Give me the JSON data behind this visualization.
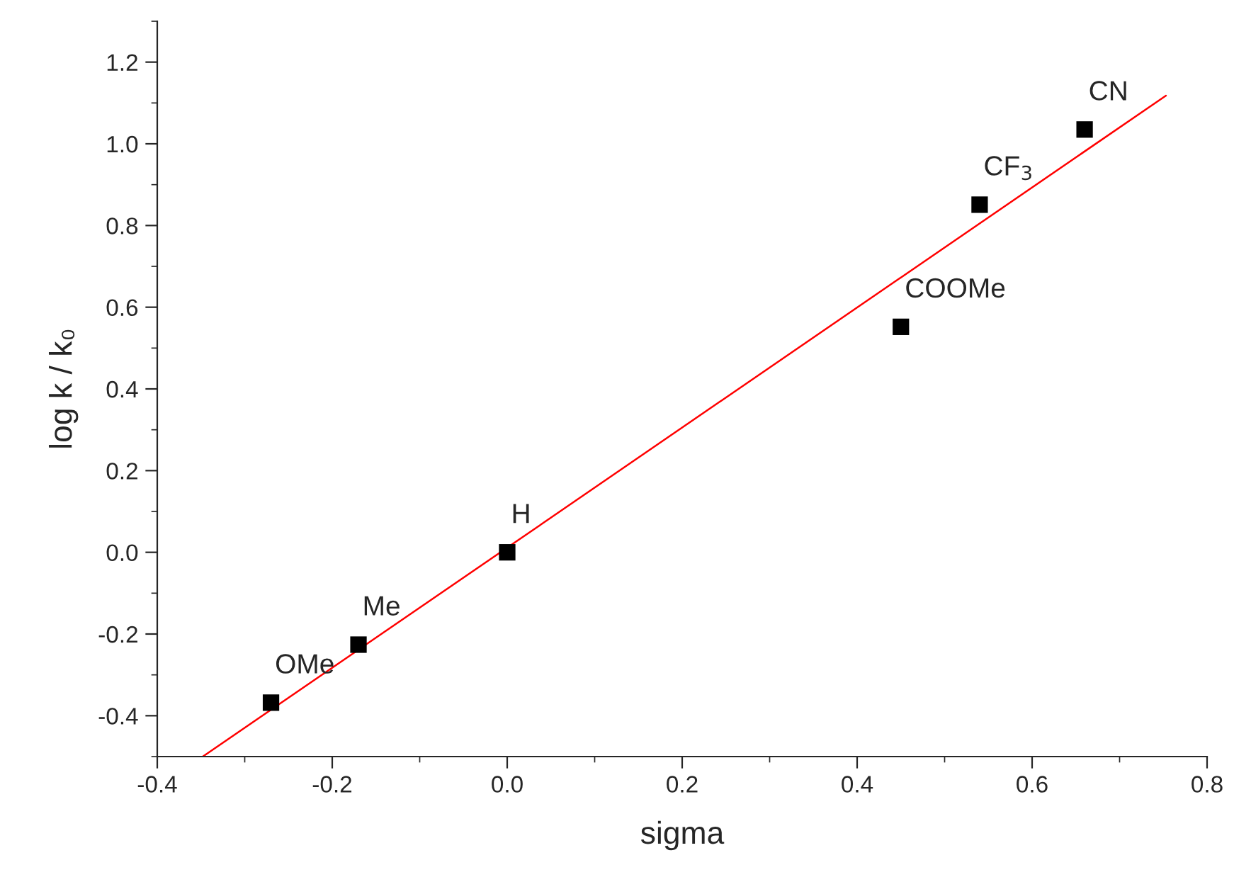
{
  "chart_data": {
    "type": "scatter",
    "xlabel": "sigma",
    "ylabel": "log k / k₀",
    "xlim": [
      -0.4,
      0.8
    ],
    "ylim": [
      -0.5,
      1.3
    ],
    "xticks": [
      {
        "value": -0.4,
        "label": "-0.4"
      },
      {
        "value": -0.2,
        "label": "-0.2"
      },
      {
        "value": 0,
        "label": "0.0"
      },
      {
        "value": 0.2,
        "label": "0.2"
      },
      {
        "value": 0.4,
        "label": "0.4"
      },
      {
        "value": 0.6,
        "label": "0.6"
      },
      {
        "value": 0.8,
        "label": "0.8"
      }
    ],
    "yticks": [
      {
        "value": -0.4,
        "label": "-0.4"
      },
      {
        "value": -0.2,
        "label": "-0.2"
      },
      {
        "value": 0,
        "label": "0.0"
      },
      {
        "value": 0.2,
        "label": "0.2"
      },
      {
        "value": 0.4,
        "label": "0.4"
      },
      {
        "value": 0.6,
        "label": "0.6"
      },
      {
        "value": 0.8,
        "label": "0.8"
      },
      {
        "value": 1,
        "label": "1.0"
      },
      {
        "value": 1.2,
        "label": "1.2"
      }
    ],
    "grid": false,
    "series": [
      {
        "color": "#000000",
        "marker": "square",
        "x": [
          -0.27,
          -0.17,
          0.0,
          0.45,
          0.54,
          0.66
        ],
        "values": [
          -0.368,
          -0.226,
          0.0,
          0.552,
          0.851,
          1.035
        ]
      },
      {
        "type": "line",
        "marker": "none",
        "color": "#ff0000",
        "x": [
          -0.348,
          0.753
        ],
        "values": [
          -0.5,
          1.118
        ]
      }
    ],
    "annotations": [
      {
        "text": "OMe",
        "x": -0.27,
        "y": -0.368
      },
      {
        "text": "Me",
        "x": -0.17,
        "y": -0.226
      },
      {
        "text": "H",
        "x": 0.0,
        "y": 0.0
      },
      {
        "text": "COOMe",
        "x": 0.45,
        "y": 0.552
      },
      {
        "text": "CF$_{3}$",
        "x": 0.54,
        "y": 0.851
      },
      {
        "text": "CN",
        "x": 0.66,
        "y": 1.035
      }
    ]
  }
}
